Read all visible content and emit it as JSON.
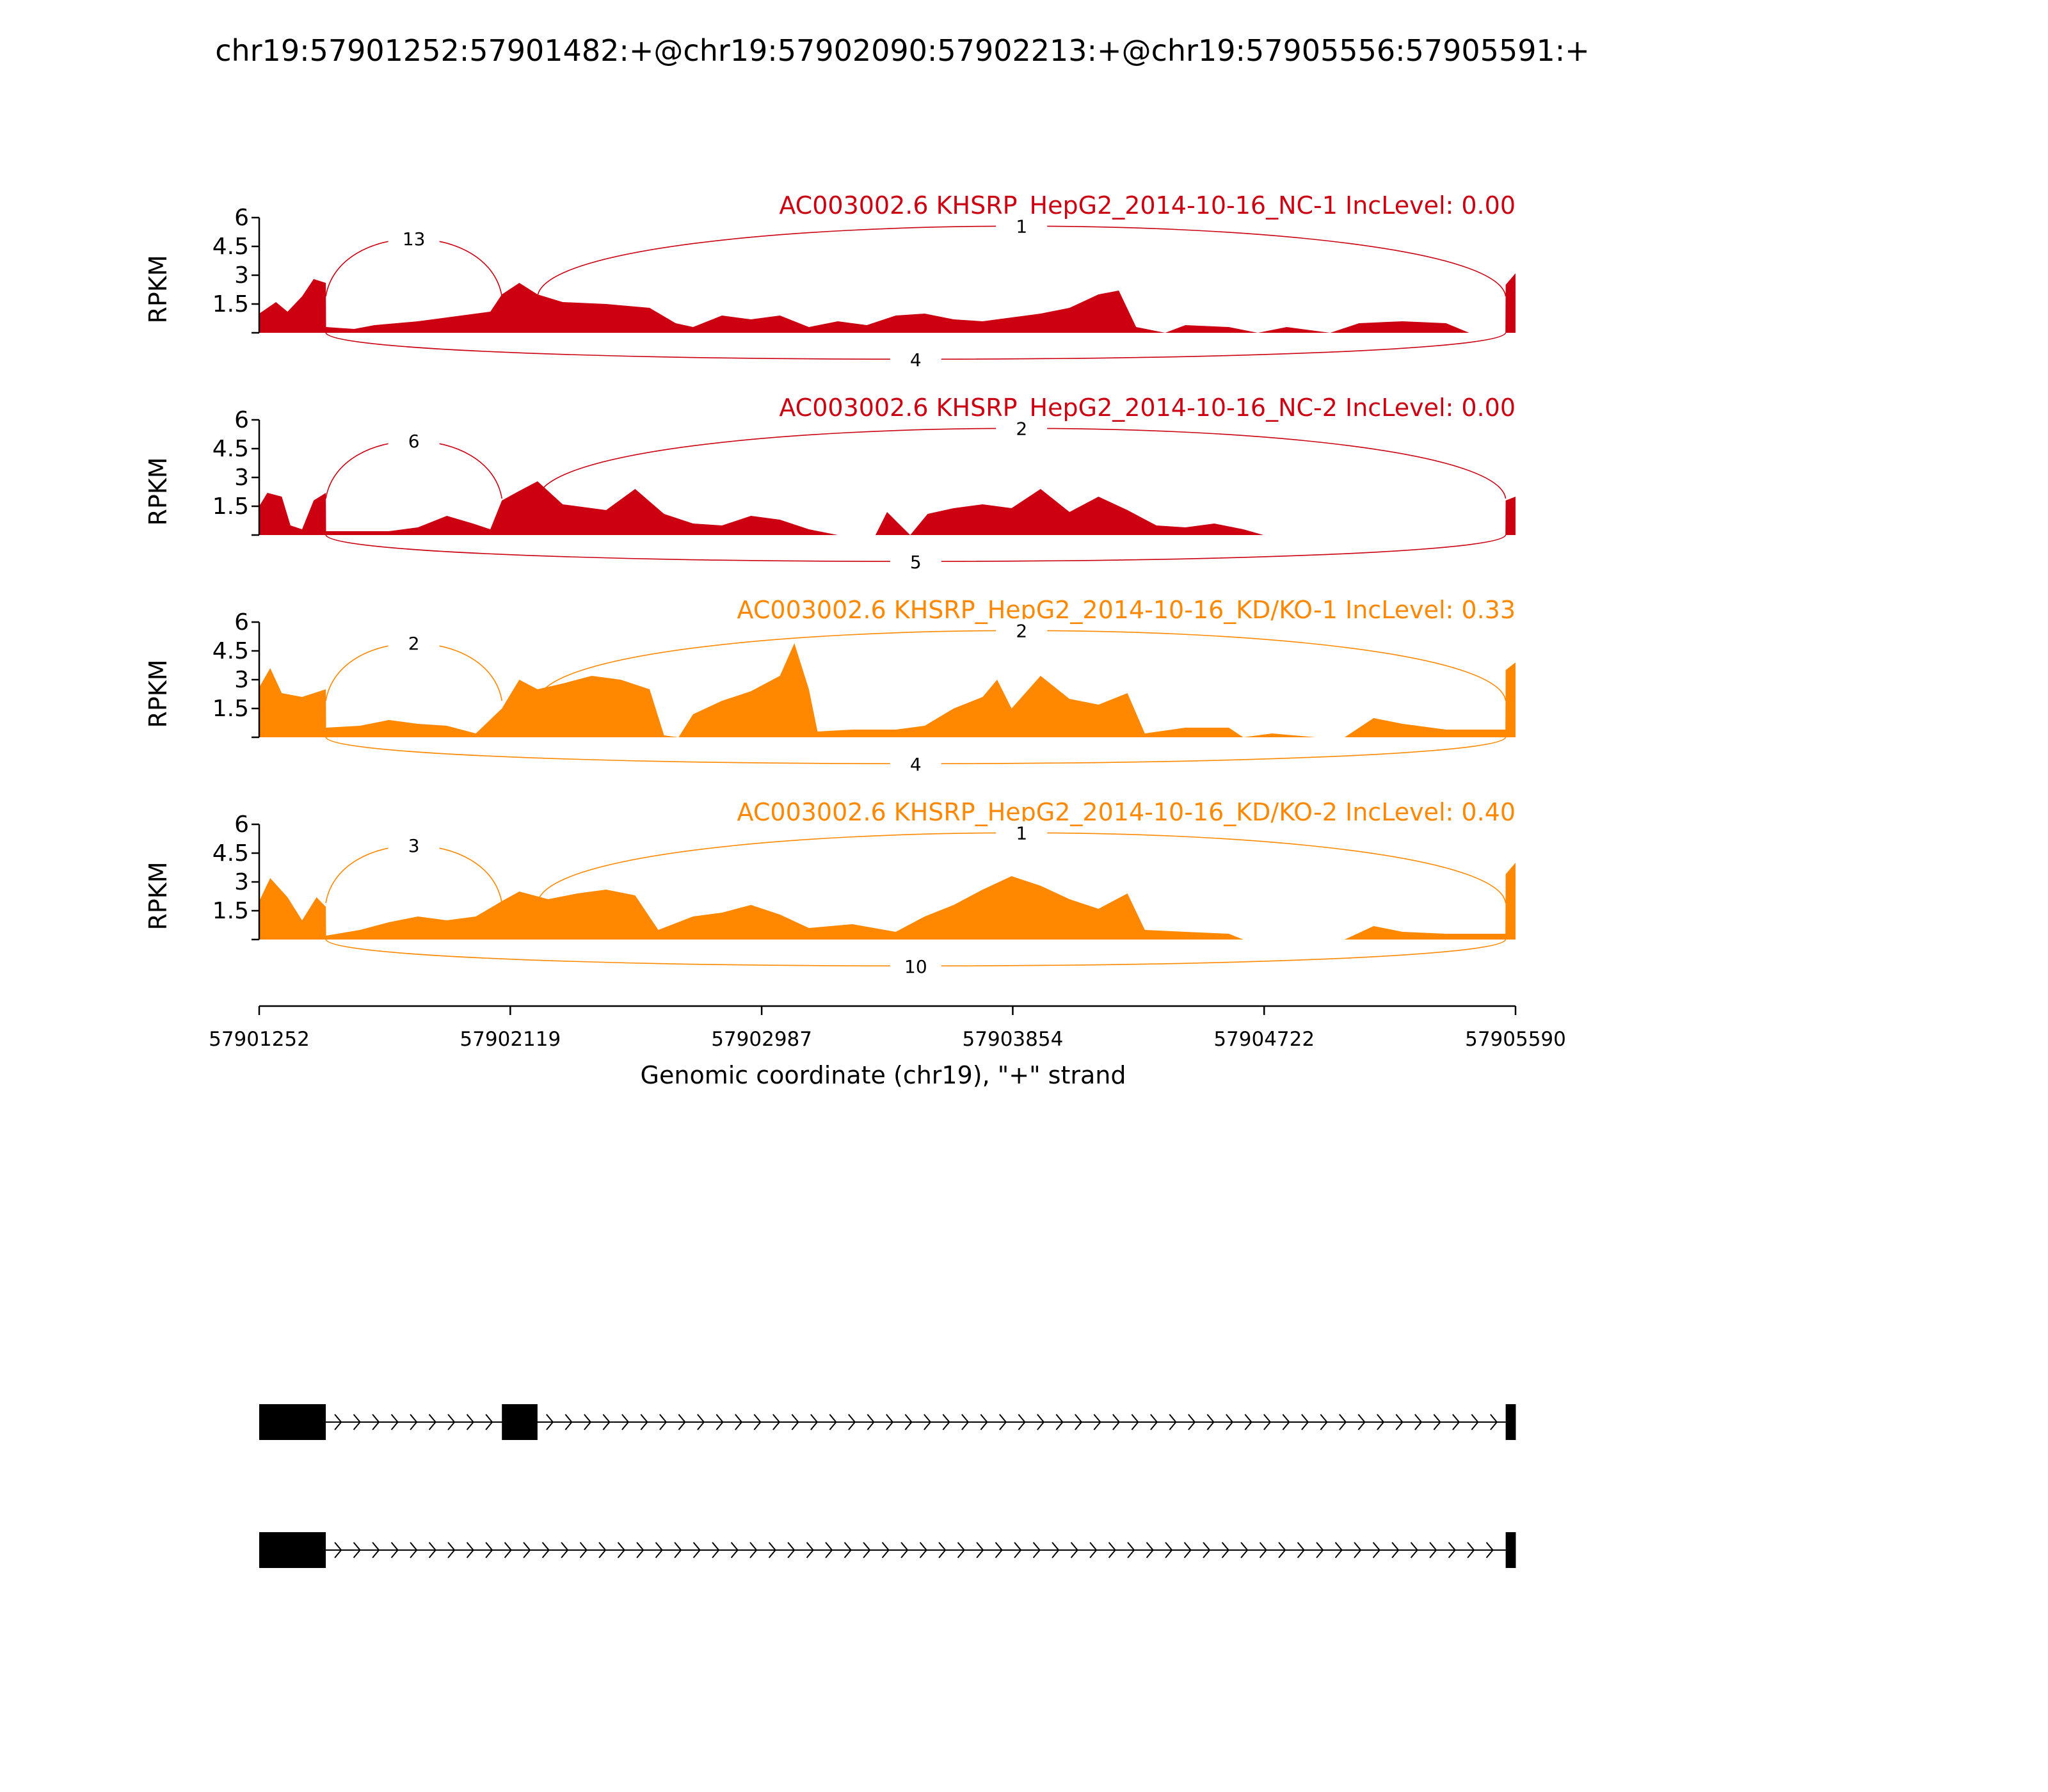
{
  "colors": {
    "nc": "#cc0011",
    "kd": "#ff8800",
    "axis": "#000000"
  },
  "chart_data": {
    "type": "area",
    "title": "chr19:57901252:57901482:+@chr19:57902090:57902213:+@chr19:57905556:57905591:+",
    "xlabel": "Genomic coordinate (chr19), \"+\" strand",
    "ylabel": "RPKM",
    "xlim": [
      57901252,
      57905590
    ],
    "ylim": [
      0,
      6
    ],
    "xticks": [
      "57901252",
      "57902119",
      "57902987",
      "57903854",
      "57904722",
      "57905590"
    ],
    "yticks": [
      "1.5",
      "3",
      "4.5",
      "6"
    ],
    "exons": [
      {
        "start": 57901252,
        "end": 57901482
      },
      {
        "start": 57902090,
        "end": 57902213
      },
      {
        "start": 57905556,
        "end": 57905591
      }
    ],
    "series": [
      {
        "name": "AC003002.6 KHSRP_HepG2_2014-10-16_NC-1 IncLevel: 0.00",
        "color": "#cc0011",
        "coverage": [
          [
            57901252,
            1.0
          ],
          [
            57901310,
            1.6
          ],
          [
            57901350,
            1.1
          ],
          [
            57901400,
            1.9
          ],
          [
            57901440,
            2.8
          ],
          [
            57901482,
            2.6
          ],
          [
            57901483,
            0.3
          ],
          [
            57901580,
            0.2
          ],
          [
            57901650,
            0.4
          ],
          [
            57901800,
            0.6
          ],
          [
            57901900,
            0.8
          ],
          [
            57902050,
            1.1
          ],
          [
            57902090,
            2.0
          ],
          [
            57902150,
            2.6
          ],
          [
            57902213,
            2.0
          ],
          [
            57902300,
            1.6
          ],
          [
            57902450,
            1.5
          ],
          [
            57902600,
            1.3
          ],
          [
            57902690,
            0.5
          ],
          [
            57902750,
            0.3
          ],
          [
            57902850,
            0.9
          ],
          [
            57902950,
            0.7
          ],
          [
            57903050,
            0.9
          ],
          [
            57903150,
            0.3
          ],
          [
            57903250,
            0.6
          ],
          [
            57903350,
            0.4
          ],
          [
            57903450,
            0.9
          ],
          [
            57903550,
            1.0
          ],
          [
            57903650,
            0.7
          ],
          [
            57903750,
            0.6
          ],
          [
            57903850,
            0.8
          ],
          [
            57903950,
            1.0
          ],
          [
            57904050,
            1.3
          ],
          [
            57904150,
            2.0
          ],
          [
            57904220,
            2.2
          ],
          [
            57904280,
            0.3
          ],
          [
            57904380,
            0.0
          ],
          [
            57904450,
            0.4
          ],
          [
            57904600,
            0.3
          ],
          [
            57904700,
            0.0
          ],
          [
            57904800,
            0.3
          ],
          [
            57904950,
            0.0
          ],
          [
            57905050,
            0.5
          ],
          [
            57905200,
            0.6
          ],
          [
            57905350,
            0.5
          ],
          [
            57905430,
            0.0
          ],
          [
            57905555,
            0.0
          ],
          [
            57905556,
            2.5
          ],
          [
            57905590,
            3.1
          ]
        ],
        "junctions": [
          {
            "from": 57901482,
            "to": 57902090,
            "count": "13",
            "side": "top"
          },
          {
            "from": 57902213,
            "to": 57905556,
            "count": "1",
            "side": "top"
          },
          {
            "from": 57901482,
            "to": 57905556,
            "count": "4",
            "side": "bottom"
          }
        ]
      },
      {
        "name": "AC003002.6 KHSRP_HepG2_2014-10-16_NC-2 IncLevel: 0.00",
        "color": "#cc0011",
        "coverage": [
          [
            57901252,
            1.5
          ],
          [
            57901280,
            2.2
          ],
          [
            57901330,
            2.0
          ],
          [
            57901360,
            0.5
          ],
          [
            57901400,
            0.3
          ],
          [
            57901440,
            1.8
          ],
          [
            57901482,
            2.2
          ],
          [
            57901483,
            0.2
          ],
          [
            57901600,
            0.2
          ],
          [
            57901700,
            0.2
          ],
          [
            57901800,
            0.4
          ],
          [
            57901900,
            1.0
          ],
          [
            57901990,
            0.6
          ],
          [
            57902050,
            0.3
          ],
          [
            57902090,
            1.8
          ],
          [
            57902150,
            2.3
          ],
          [
            57902213,
            2.8
          ],
          [
            57902300,
            1.6
          ],
          [
            57902450,
            1.3
          ],
          [
            57902550,
            2.4
          ],
          [
            57902650,
            1.1
          ],
          [
            57902750,
            0.6
          ],
          [
            57902850,
            0.5
          ],
          [
            57902950,
            1.0
          ],
          [
            57903050,
            0.8
          ],
          [
            57903150,
            0.3
          ],
          [
            57903250,
            0.0
          ],
          [
            57903380,
            0.0
          ],
          [
            57903420,
            1.2
          ],
          [
            57903500,
            0.0
          ],
          [
            57903560,
            1.1
          ],
          [
            57903650,
            1.4
          ],
          [
            57903750,
            1.6
          ],
          [
            57903850,
            1.4
          ],
          [
            57903950,
            2.4
          ],
          [
            57904050,
            1.2
          ],
          [
            57904150,
            2.0
          ],
          [
            57904250,
            1.3
          ],
          [
            57904350,
            0.5
          ],
          [
            57904450,
            0.4
          ],
          [
            57904550,
            0.6
          ],
          [
            57904650,
            0.3
          ],
          [
            57904720,
            0.0
          ],
          [
            57905555,
            0.0
          ],
          [
            57905556,
            1.8
          ],
          [
            57905590,
            2.0
          ]
        ],
        "junctions": [
          {
            "from": 57901482,
            "to": 57902090,
            "count": "6",
            "side": "top"
          },
          {
            "from": 57902213,
            "to": 57905556,
            "count": "2",
            "side": "top"
          },
          {
            "from": 57901482,
            "to": 57905556,
            "count": "5",
            "side": "bottom"
          }
        ]
      },
      {
        "name": "AC003002.6 KHSRP_HepG2_2014-10-16_KD/KO-1 IncLevel: 0.33",
        "color": "#ff8800",
        "coverage": [
          [
            57901252,
            2.6
          ],
          [
            57901290,
            3.6
          ],
          [
            57901330,
            2.3
          ],
          [
            57901400,
            2.1
          ],
          [
            57901482,
            2.5
          ],
          [
            57901483,
            0.5
          ],
          [
            57901600,
            0.6
          ],
          [
            57901700,
            0.9
          ],
          [
            57901800,
            0.7
          ],
          [
            57901900,
            0.6
          ],
          [
            57902000,
            0.2
          ],
          [
            57902090,
            1.5
          ],
          [
            57902150,
            3.0
          ],
          [
            57902213,
            2.5
          ],
          [
            57902300,
            2.8
          ],
          [
            57902400,
            3.2
          ],
          [
            57902500,
            3.0
          ],
          [
            57902600,
            2.5
          ],
          [
            57902650,
            0.1
          ],
          [
            57902700,
            0.0
          ],
          [
            57902750,
            1.2
          ],
          [
            57902850,
            1.9
          ],
          [
            57902950,
            2.4
          ],
          [
            57903050,
            3.2
          ],
          [
            57903100,
            4.9
          ],
          [
            57903150,
            2.5
          ],
          [
            57903180,
            0.3
          ],
          [
            57903300,
            0.4
          ],
          [
            57903450,
            0.4
          ],
          [
            57903550,
            0.6
          ],
          [
            57903650,
            1.5
          ],
          [
            57903750,
            2.1
          ],
          [
            57903800,
            3.0
          ],
          [
            57903850,
            1.5
          ],
          [
            57903950,
            3.2
          ],
          [
            57904050,
            2.0
          ],
          [
            57904150,
            1.7
          ],
          [
            57904250,
            2.3
          ],
          [
            57904310,
            0.2
          ],
          [
            57904450,
            0.5
          ],
          [
            57904600,
            0.5
          ],
          [
            57904650,
            0.0
          ],
          [
            57904750,
            0.2
          ],
          [
            57904900,
            0.0
          ],
          [
            57905000,
            0.0
          ],
          [
            57905100,
            1.0
          ],
          [
            57905200,
            0.7
          ],
          [
            57905350,
            0.4
          ],
          [
            57905555,
            0.4
          ],
          [
            57905556,
            3.5
          ],
          [
            57905590,
            3.9
          ]
        ],
        "junctions": [
          {
            "from": 57901482,
            "to": 57902090,
            "count": "2",
            "side": "top"
          },
          {
            "from": 57902213,
            "to": 57905556,
            "count": "2",
            "side": "top"
          },
          {
            "from": 57901482,
            "to": 57905556,
            "count": "4",
            "side": "bottom"
          }
        ]
      },
      {
        "name": "AC003002.6 KHSRP_HepG2_2014-10-16_KD/KO-2 IncLevel: 0.40",
        "color": "#ff8800",
        "coverage": [
          [
            57901252,
            2.0
          ],
          [
            57901290,
            3.2
          ],
          [
            57901350,
            2.2
          ],
          [
            57901400,
            1.0
          ],
          [
            57901450,
            2.2
          ],
          [
            57901482,
            1.7
          ],
          [
            57901483,
            0.2
          ],
          [
            57901600,
            0.5
          ],
          [
            57901700,
            0.9
          ],
          [
            57901800,
            1.2
          ],
          [
            57901900,
            1.0
          ],
          [
            57902000,
            1.2
          ],
          [
            57902090,
            2.0
          ],
          [
            57902150,
            2.5
          ],
          [
            57902250,
            2.1
          ],
          [
            57902350,
            2.4
          ],
          [
            57902450,
            2.6
          ],
          [
            57902550,
            2.3
          ],
          [
            57902630,
            0.5
          ],
          [
            57902750,
            1.2
          ],
          [
            57902850,
            1.4
          ],
          [
            57902950,
            1.8
          ],
          [
            57903050,
            1.3
          ],
          [
            57903150,
            0.6
          ],
          [
            57903300,
            0.8
          ],
          [
            57903450,
            0.4
          ],
          [
            57903550,
            1.2
          ],
          [
            57903650,
            1.8
          ],
          [
            57903750,
            2.6
          ],
          [
            57903850,
            3.3
          ],
          [
            57903950,
            2.8
          ],
          [
            57904050,
            2.1
          ],
          [
            57904150,
            1.6
          ],
          [
            57904250,
            2.4
          ],
          [
            57904310,
            0.5
          ],
          [
            57904450,
            0.4
          ],
          [
            57904600,
            0.3
          ],
          [
            57904650,
            0.0
          ],
          [
            57904750,
            0.0
          ],
          [
            57905000,
            0.0
          ],
          [
            57905100,
            0.7
          ],
          [
            57905200,
            0.4
          ],
          [
            57905350,
            0.3
          ],
          [
            57905555,
            0.3
          ],
          [
            57905556,
            3.4
          ],
          [
            57905590,
            4.0
          ]
        ],
        "junctions": [
          {
            "from": 57901482,
            "to": 57902090,
            "count": "3",
            "side": "top"
          },
          {
            "from": 57902213,
            "to": 57905556,
            "count": "1",
            "side": "top"
          },
          {
            "from": 57901482,
            "to": 57905556,
            "count": "10",
            "side": "bottom"
          }
        ]
      }
    ],
    "isoforms": [
      {
        "exons": [
          [
            57901252,
            57901482
          ],
          [
            57902090,
            57902213
          ],
          [
            57905556,
            57905591
          ]
        ]
      },
      {
        "exons": [
          [
            57901252,
            57901482
          ],
          [
            57905556,
            57905591
          ]
        ]
      }
    ]
  }
}
